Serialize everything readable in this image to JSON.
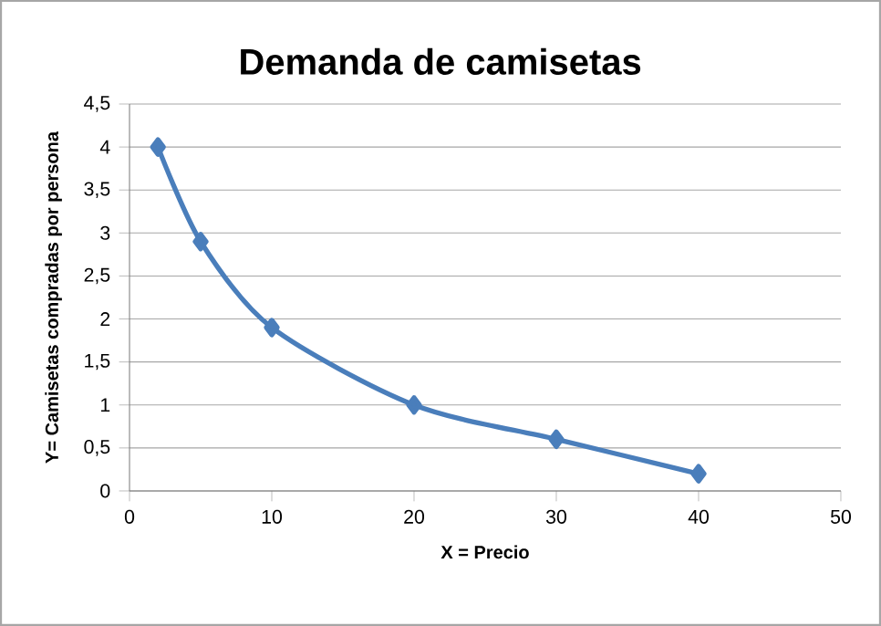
{
  "chart_data": {
    "type": "line",
    "title": "Demanda de camisetas",
    "xlabel": "X = Precio",
    "ylabel": "Y= Camisetas compradas  por persona",
    "x": [
      2,
      5,
      10,
      20,
      30,
      40
    ],
    "series": [
      {
        "color": "#4a7ebb",
        "values": [
          4,
          2.9,
          1.9,
          1,
          0.6,
          0.2
        ]
      }
    ],
    "xlim": [
      0,
      50
    ],
    "xticks": [
      0,
      10,
      20,
      30,
      40,
      50
    ],
    "ylim": [
      0,
      4.5
    ],
    "yticks": [
      0,
      {
        "value": 0.5,
        "label": "0,5"
      },
      1,
      {
        "value": 1.5,
        "label": "1,5"
      },
      2,
      {
        "value": 2.5,
        "label": "2,5"
      },
      3,
      {
        "value": 3.5,
        "label": "3,5"
      },
      4,
      {
        "value": 4.5,
        "label": "4,5"
      }
    ],
    "grid": "y",
    "marker": "diamond",
    "line_style": "solid"
  }
}
